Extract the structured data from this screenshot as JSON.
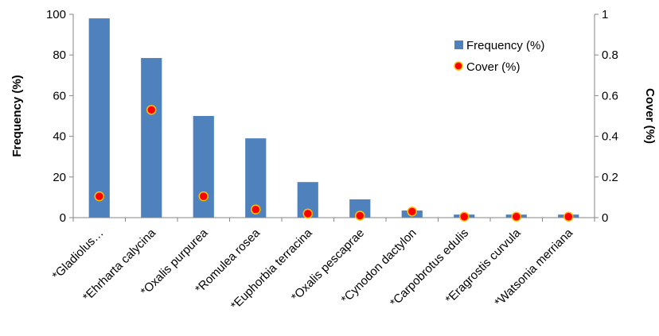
{
  "chart_data": {
    "type": "bar",
    "categories": [
      "*Gladiolus…",
      "*Ehrharta calycina",
      "*Oxalis purpurea",
      "*Romulea rosea",
      "*Euphorbia terracina",
      "*Oxalis pescaprae",
      "*Cynodon dactylon",
      "*Carpobrotus edulis",
      "*Eragrostis curvula",
      "*Watsonia merriana"
    ],
    "series": [
      {
        "name": "Frequency (%)",
        "type": "bar",
        "axis": "left",
        "color": "#4F81BD",
        "values": [
          98,
          78.5,
          50,
          39,
          17.5,
          9,
          3.5,
          1.5,
          1.5,
          1.5
        ]
      },
      {
        "name": "Cover (%)",
        "type": "scatter",
        "axis": "right",
        "color": "#FF0000",
        "values": [
          0.105,
          0.53,
          0.105,
          0.04,
          0.02,
          0.01,
          0.03,
          0.005,
          0.005,
          0.005
        ]
      }
    ],
    "ylabel": "Frequency (%)",
    "y2label": "Cover (%)",
    "ylim": [
      0,
      100
    ],
    "y2lim": [
      0,
      1
    ],
    "yticks": [
      "0",
      "20",
      "40",
      "60",
      "80",
      "100"
    ],
    "y2ticks": [
      "0",
      "0.2",
      "0.4",
      "0.6",
      "0.8",
      "1"
    ],
    "legend": "top-right",
    "grid": false
  }
}
